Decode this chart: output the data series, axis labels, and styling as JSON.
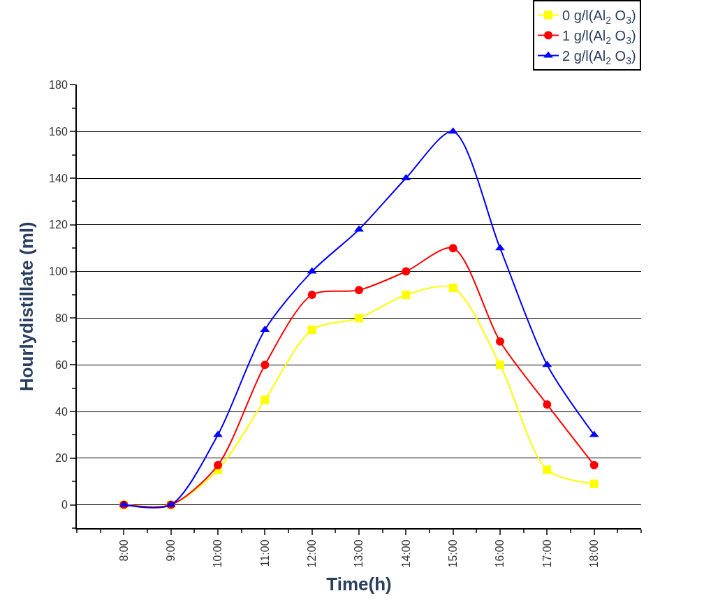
{
  "chart_data": {
    "type": "line",
    "xlabel": "Time(h)",
    "ylabel": "Hourlydistillate (ml)",
    "x": [
      8,
      9,
      10,
      11,
      12,
      13,
      14,
      15,
      16,
      17,
      18
    ],
    "xlim": [
      7,
      19
    ],
    "xticks": [
      {
        "value": 8,
        "label": "8:00"
      },
      {
        "value": 9,
        "label": "9:00"
      },
      {
        "value": 10,
        "label": "10:00"
      },
      {
        "value": 11,
        "label": "11:00"
      },
      {
        "value": 12,
        "label": "12:00"
      },
      {
        "value": 13,
        "label": "13:00"
      },
      {
        "value": 14,
        "label": "14:00"
      },
      {
        "value": 15,
        "label": "15:00"
      },
      {
        "value": 16,
        "label": "16:00"
      },
      {
        "value": 17,
        "label": "17:00"
      },
      {
        "value": 18,
        "label": "18:00"
      }
    ],
    "ylim": [
      -10,
      180
    ],
    "yticks": [
      0,
      20,
      40,
      60,
      80,
      100,
      120,
      140,
      160,
      180
    ],
    "grid": "y",
    "legend": "top right",
    "series": [
      {
        "name": "0 g/l(Al$_{2}$ O$_{3}$)",
        "color": "#ffff00",
        "marker": "square",
        "values": [
          0,
          0,
          15,
          45,
          75,
          80,
          90,
          93,
          60,
          15,
          9
        ]
      },
      {
        "name": "1 g/l(Al$_{2}$ O$_{3}$)",
        "color": "#ff0000",
        "marker": "circle",
        "values": [
          0,
          0,
          17,
          60,
          90,
          92,
          100,
          110,
          70,
          43,
          17
        ]
      },
      {
        "name": "2 g/l(Al$_{2}$ O$_{3}$)",
        "color": "#0000ff",
        "marker": "triangle",
        "values": [
          0,
          0,
          30,
          75,
          100,
          118,
          140,
          160,
          110,
          60,
          30
        ]
      }
    ]
  }
}
